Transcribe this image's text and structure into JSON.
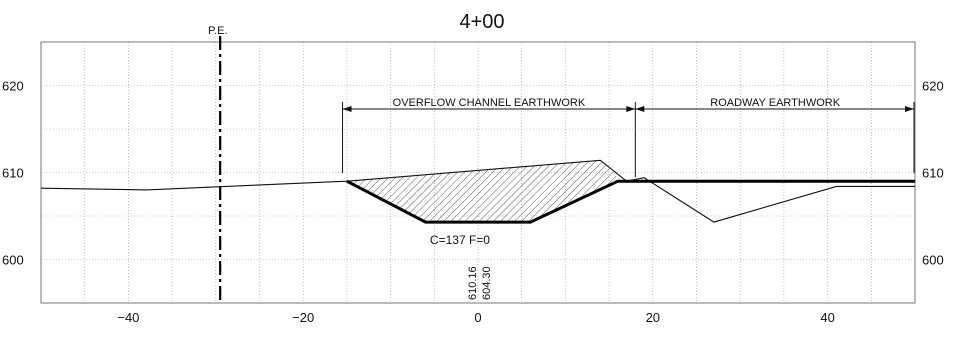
{
  "section": {
    "station": "4+00",
    "pe_label": "P.E.",
    "overflow_label": "OVERFLOW CHANNEL EARTHWORK",
    "roadway_label": "ROADWAY EARTHWORK",
    "volumes_label": "C=137   F=0",
    "elev_existing": "610.16",
    "elev_design": "604.30"
  },
  "axes": {
    "x_ticks": [
      -40,
      -20,
      0,
      20,
      40
    ],
    "y_ticks_left": [
      "620",
      "610",
      "600"
    ],
    "y_ticks_right": [
      "620",
      "610",
      "600"
    ],
    "x_range": [
      -50,
      50
    ],
    "y_range": [
      595,
      625
    ]
  },
  "colors": {
    "line": "#111111",
    "grid": "#9a9a9a",
    "background": "#ffffff"
  },
  "chart_data": {
    "type": "line",
    "title": "4+00",
    "xlabel": "",
    "ylabel": "",
    "xlim": [
      -50,
      50
    ],
    "ylim": [
      595,
      625
    ],
    "grid": true,
    "series": [
      {
        "x": [
          -50,
          -38,
          -15,
          14,
          17,
          19,
          27,
          41,
          50
        ],
        "y": [
          608.2,
          608.0,
          609.0,
          611.4,
          609.0,
          609.4,
          604.3,
          608.4,
          608.4
        ]
      },
      {
        "x": [
          -15,
          -6,
          6,
          16,
          50
        ],
        "y": [
          609.0,
          604.3,
          604.3,
          609.0,
          609.0
        ]
      }
    ],
    "annotations": [
      {
        "text": "P.E.",
        "x": -29.5
      },
      {
        "text": "OVERFLOW CHANNEL EARTHWORK",
        "x_from": -15.5,
        "x_to": 18
      },
      {
        "text": "ROADWAY EARTHWORK",
        "x_from": 18,
        "x_to": 50
      },
      {
        "text": "C=137   F=0",
        "x": 0,
        "y": 601.8
      },
      {
        "text": "610.16",
        "x": 0,
        "y": 598
      },
      {
        "text": "604.30",
        "x": 0,
        "y": 598
      }
    ]
  }
}
